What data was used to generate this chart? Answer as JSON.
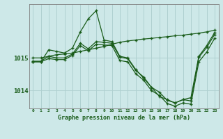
{
  "title": "Graphe pression niveau de la mer (hPa)",
  "bg_color": "#cde8e8",
  "grid_color": "#afd0d0",
  "line_color": "#1a5c1a",
  "hours": [
    0,
    1,
    2,
    3,
    4,
    5,
    6,
    7,
    8,
    9,
    10,
    11,
    12,
    13,
    14,
    15,
    16,
    17,
    18,
    19,
    20,
    21,
    22,
    23
  ],
  "line_top": [
    1015.0,
    1015.0,
    1015.05,
    1015.1,
    1015.12,
    1015.15,
    1015.2,
    1015.25,
    1015.3,
    1015.35,
    1015.42,
    1015.48,
    1015.52,
    1015.55,
    1015.58,
    1015.6,
    1015.63,
    1015.65,
    1015.68,
    1015.7,
    1015.73,
    1015.76,
    1015.8,
    1015.85
  ],
  "line_peak": [
    1014.88,
    1014.88,
    1015.25,
    1015.2,
    1015.15,
    1015.3,
    1015.8,
    1016.2,
    1016.45,
    1015.55,
    1015.5,
    1015.05,
    1015.0,
    1014.65,
    1014.38,
    1014.1,
    1013.82,
    1013.72,
    1013.62,
    1013.72,
    1013.78,
    1015.05,
    1015.38,
    1015.78
  ],
  "line_mid": [
    1014.9,
    1014.9,
    1015.05,
    1015.0,
    1015.0,
    1015.12,
    1015.45,
    1015.28,
    1015.5,
    1015.48,
    1015.45,
    1015.02,
    1014.98,
    1014.62,
    1014.42,
    1014.1,
    1013.95,
    1013.7,
    1013.62,
    1013.72,
    1013.68,
    1015.02,
    1015.32,
    1015.72
  ],
  "line_low": [
    1014.88,
    1014.88,
    1014.98,
    1014.95,
    1014.95,
    1015.08,
    1015.38,
    1015.22,
    1015.42,
    1015.4,
    1015.38,
    1014.92,
    1014.88,
    1014.52,
    1014.32,
    1014.0,
    1013.85,
    1013.6,
    1013.52,
    1013.62,
    1013.58,
    1014.88,
    1015.18,
    1015.6
  ],
  "ylim": [
    1013.45,
    1016.65
  ],
  "yticks": [
    1014.0,
    1015.0
  ],
  "xlim": [
    -0.5,
    23.5
  ]
}
